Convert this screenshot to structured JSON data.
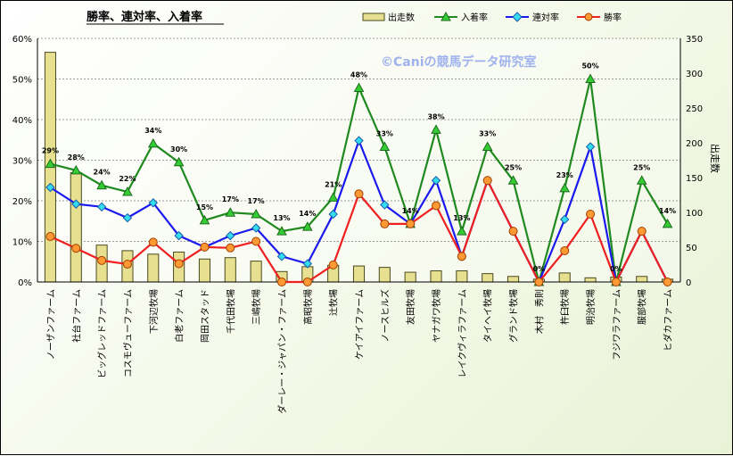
{
  "chart_data": {
    "type": "bar",
    "title": "勝率、連対率、入着率",
    "watermark": "©Caniの競馬データ研究室",
    "y2label": "出走数",
    "ylim": [
      0,
      60
    ],
    "y2lim": [
      0,
      350
    ],
    "yticks": [
      "0%",
      "10%",
      "20%",
      "30%",
      "40%",
      "50%",
      "60%"
    ],
    "y2ticks": [
      "0",
      "50",
      "100",
      "150",
      "200",
      "250",
      "300",
      "350"
    ],
    "categories": [
      "ノーザンファーム",
      "社台ファーム",
      "ビッグレッドファーム",
      "コスモヴューファーム",
      "下河辺牧場",
      "白老ファーム",
      "岡田スタッド",
      "千代田牧場",
      "三嶋牧場",
      "ダーレー・ジャパン・ファーム",
      "高昭牧場",
      "辻牧場",
      "ケイアイファーム",
      "ノースヒルズ",
      "友田牧場",
      "ヤナガワ牧場",
      "レイクヴィラファーム",
      "タイヘイ牧場",
      "グランド牧場",
      "木村　秀則",
      "杵臼牧場",
      "明治牧場",
      "フジワラファーム",
      "服部牧場",
      "ヒダカファーム"
    ],
    "legend": [
      "出走数",
      "入着率",
      "連対率",
      "勝率"
    ],
    "colors": {
      "bars": "#e6e090",
      "bar_edge": "#4a4a20",
      "place": "#1f8a1f",
      "quinella": "#1a1aee",
      "win": "#ee2020",
      "place_marker": "#33cc33",
      "quinella_marker": "#33ddee",
      "win_marker": "#ff9933"
    },
    "runs": [
      330,
      157,
      53,
      45,
      40,
      43,
      33,
      35,
      30,
      15,
      22,
      24,
      23,
      21,
      14,
      16,
      16,
      12,
      8,
      4,
      13,
      6,
      7,
      8,
      4
    ],
    "place_rate": [
      29.1,
      27.5,
      23.8,
      22.2,
      34.1,
      29.5,
      15.2,
      17.1,
      16.7,
      12.5,
      13.6,
      20.8,
      47.8,
      33.3,
      14.3,
      37.5,
      12.5,
      33.3,
      25.0,
      0,
      23.1,
      50.0,
      0,
      25.0,
      14.3
    ],
    "place_labels": [
      "29%",
      "28%",
      "24%",
      "22%",
      "34%",
      "30%",
      "15%",
      "17%",
      "17%",
      "13%",
      "14%",
      "21%",
      "48%",
      "33%",
      "14%",
      "38%",
      "13%",
      "33%",
      "25%",
      "0%",
      "23%",
      "50%",
      "0%",
      "25%",
      "14%"
    ],
    "quinella_rate": [
      23.3,
      19.2,
      18.5,
      15.8,
      19.5,
      11.4,
      8.6,
      11.4,
      13.3,
      6.3,
      4.5,
      16.7,
      34.8,
      19.0,
      14.3,
      25.0,
      6.3,
      25.0,
      12.5,
      0,
      15.4,
      33.3,
      0,
      12.5,
      0
    ],
    "win_rate": [
      11.2,
      8.3,
      5.3,
      4.4,
      9.8,
      4.5,
      8.6,
      8.4,
      10.0,
      0,
      0,
      4.2,
      21.7,
      14.3,
      14.3,
      18.8,
      6.3,
      25.0,
      12.5,
      0,
      7.7,
      16.7,
      0,
      12.5,
      0
    ]
  }
}
